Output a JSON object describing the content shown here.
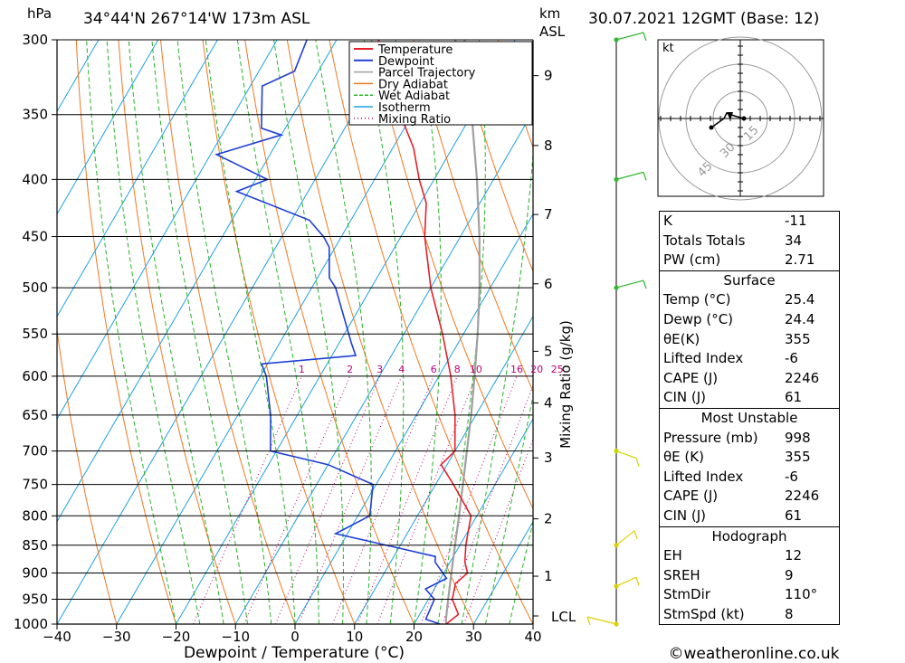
{
  "header": {
    "hpa_label": "hPa",
    "location": "34°44'N  267°14'W  173m  ASL",
    "km_label": "km",
    "asl_label": "ASL",
    "datetime": "30.07.2021  12GMT  (Base: 12)"
  },
  "legend": [
    "Temperature",
    "Dewpoint",
    "Parcel Trajectory",
    "Dry Adiabat",
    "Wet Adiabat",
    "Isotherm",
    "Mixing Ratio"
  ],
  "colors": {
    "temperature": "#e8202a",
    "dewpoint": "#1f3fd8",
    "parcel": "#a0a0a0",
    "dry_adiabat": "#f07820",
    "wet_adiabat": "#28b428",
    "isotherm": "#20a0e0",
    "mixing_ratio": "#c0007a",
    "wind_low": "#e0d000",
    "wind_mid": "#c8d800",
    "wind_high": "#30b830"
  },
  "xlabel": "Dewpoint / Temperature (°C)",
  "y2label": "Mixing Ratio (g/kg)",
  "credit": "©weatheronline.co.uk",
  "lcl_label": "LCL",
  "hodograph_unit": "kt",
  "chart_data": {
    "type": "skew-t",
    "pressure_levels": [
      300,
      350,
      400,
      450,
      500,
      550,
      600,
      650,
      700,
      750,
      800,
      850,
      900,
      950,
      1000
    ],
    "temperature_ticks": [
      -40,
      -30,
      -20,
      -10,
      0,
      10,
      20,
      30,
      40
    ],
    "xlim": [
      -40,
      40
    ],
    "ylim": [
      1000,
      300
    ],
    "height_ticks_km": [
      {
        "km": "9",
        "p": 323
      },
      {
        "km": "8",
        "p": 373
      },
      {
        "km": "7",
        "p": 430
      },
      {
        "km": "6",
        "p": 496
      },
      {
        "km": "5",
        "p": 570
      },
      {
        "km": "4",
        "p": 634
      },
      {
        "km": "3",
        "p": 710
      },
      {
        "km": "2",
        "p": 805
      },
      {
        "km": "1",
        "p": 906
      }
    ],
    "mixing_ratio_labels": [
      "1",
      "2",
      "3",
      "4",
      "6",
      "8",
      "10",
      "16",
      "20",
      "25"
    ],
    "temperature_profile": [
      {
        "p": 1000,
        "t": 25.4
      },
      {
        "p": 980,
        "t": 26.5
      },
      {
        "p": 950,
        "t": 24.0
      },
      {
        "p": 920,
        "t": 23.0
      },
      {
        "p": 900,
        "t": 24.0
      },
      {
        "p": 880,
        "t": 22.5
      },
      {
        "p": 850,
        "t": 21.0
      },
      {
        "p": 800,
        "t": 19.0
      },
      {
        "p": 750,
        "t": 13.0
      },
      {
        "p": 720,
        "t": 9.0
      },
      {
        "p": 700,
        "t": 10.0
      },
      {
        "p": 650,
        "t": 6.5
      },
      {
        "p": 600,
        "t": 2.0
      },
      {
        "p": 550,
        "t": -3.5
      },
      {
        "p": 500,
        "t": -10.0
      },
      {
        "p": 450,
        "t": -16.0
      },
      {
        "p": 420,
        "t": -19.0
      },
      {
        "p": 400,
        "t": -22.5
      },
      {
        "p": 375,
        "t": -26.5
      },
      {
        "p": 350,
        "t": -32.0
      },
      {
        "p": 320,
        "t": -38.0
      },
      {
        "p": 300,
        "t": -43.0
      }
    ],
    "dewpoint_profile": [
      {
        "p": 1000,
        "t": 24.4
      },
      {
        "p": 990,
        "t": 21.5
      },
      {
        "p": 950,
        "t": 21.0
      },
      {
        "p": 930,
        "t": 18.5
      },
      {
        "p": 910,
        "t": 21.0
      },
      {
        "p": 880,
        "t": 17.5
      },
      {
        "p": 870,
        "t": 17.0
      },
      {
        "p": 855,
        "t": 10.0
      },
      {
        "p": 830,
        "t": -2.0
      },
      {
        "p": 800,
        "t": 2.0
      },
      {
        "p": 750,
        "t": -0.5
      },
      {
        "p": 720,
        "t": -10.0
      },
      {
        "p": 700,
        "t": -21.0
      },
      {
        "p": 650,
        "t": -24.5
      },
      {
        "p": 600,
        "t": -29.0
      },
      {
        "p": 585,
        "t": -31.0
      },
      {
        "p": 575,
        "t": -16.0
      },
      {
        "p": 560,
        "t": -18.0
      },
      {
        "p": 500,
        "t": -26.0
      },
      {
        "p": 490,
        "t": -28.0
      },
      {
        "p": 460,
        "t": -31.0
      },
      {
        "p": 450,
        "t": -33.0
      },
      {
        "p": 435,
        "t": -37.0
      },
      {
        "p": 410,
        "t": -52.0
      },
      {
        "p": 400,
        "t": -48.0
      },
      {
        "p": 380,
        "t": -59.0
      },
      {
        "p": 365,
        "t": -50.0
      },
      {
        "p": 360,
        "t": -54.0
      },
      {
        "p": 330,
        "t": -58.0
      },
      {
        "p": 320,
        "t": -54.0
      },
      {
        "p": 300,
        "t": -55.0
      }
    ],
    "parcel_profile": [
      {
        "p": 1000,
        "t": 25.4
      },
      {
        "p": 990,
        "t": 24.9
      },
      {
        "p": 950,
        "t": 23.3
      },
      {
        "p": 900,
        "t": 21.3
      },
      {
        "p": 850,
        "t": 19.2
      },
      {
        "p": 800,
        "t": 17.0
      },
      {
        "p": 750,
        "t": 14.6
      },
      {
        "p": 700,
        "t": 12.0
      },
      {
        "p": 650,
        "t": 9.2
      },
      {
        "p": 600,
        "t": 6.0
      },
      {
        "p": 550,
        "t": 2.4
      },
      {
        "p": 500,
        "t": -1.8
      },
      {
        "p": 450,
        "t": -6.8
      },
      {
        "p": 400,
        "t": -12.8
      },
      {
        "p": 350,
        "t": -20.0
      },
      {
        "p": 300,
        "t": -28.5
      }
    ],
    "wind_levels_hpa": [
      1000,
      925,
      850,
      700,
      500,
      400,
      300
    ]
  },
  "indices": {
    "general": [
      {
        "label": "K",
        "value": "-11"
      },
      {
        "label": "Totals Totals",
        "value": "34"
      },
      {
        "label": "PW (cm)",
        "value": "2.71"
      }
    ],
    "surface": {
      "title": "Surface",
      "rows": [
        {
          "label": "Temp (°C)",
          "value": "25.4"
        },
        {
          "label": "Dewp (°C)",
          "value": "24.4"
        },
        {
          "label": "θE(K)",
          "value": "355"
        },
        {
          "label": "Lifted Index",
          "value": "-6"
        },
        {
          "label": "CAPE (J)",
          "value": "2246"
        },
        {
          "label": "CIN (J)",
          "value": "61"
        }
      ]
    },
    "most_unstable": {
      "title": "Most Unstable",
      "rows": [
        {
          "label": "Pressure (mb)",
          "value": "998"
        },
        {
          "label": "θE (K)",
          "value": "355"
        },
        {
          "label": "Lifted Index",
          "value": "-6"
        },
        {
          "label": "CAPE (J)",
          "value": "2246"
        },
        {
          "label": "CIN (J)",
          "value": "61"
        }
      ]
    },
    "hodograph": {
      "title": "Hodograph",
      "rows": [
        {
          "label": "EH",
          "value": "12"
        },
        {
          "label": "SREH",
          "value": "9"
        },
        {
          "label": "StmDir",
          "value": "110°"
        },
        {
          "label": "StmSpd (kt)",
          "value": "8"
        }
      ]
    }
  },
  "hodograph_ring_labels": [
    "15",
    "30",
    "45"
  ]
}
